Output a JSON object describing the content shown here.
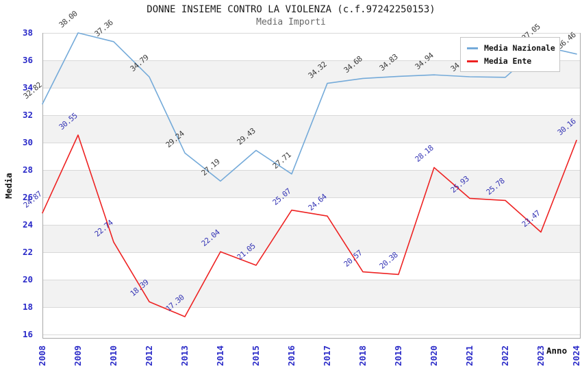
{
  "chart_data": {
    "type": "line",
    "title": "DONNE INSIEME CONTRO LA VIOLENZA (c.f.97242250153)",
    "subtitle": "Media Importi",
    "xlabel": "Anno",
    "ylabel": "Media",
    "categories": [
      "2008",
      "2009",
      "2010",
      "2012",
      "2013",
      "2014",
      "2015",
      "2016",
      "2017",
      "2018",
      "2019",
      "2020",
      "2021",
      "2022",
      "2023",
      "2024"
    ],
    "series": [
      {
        "name": "Media Nazionale",
        "color": "#74aad9",
        "label_color": "#3c3c3c",
        "values": [
          32.82,
          38.0,
          37.36,
          34.79,
          29.24,
          27.19,
          29.43,
          27.71,
          34.32,
          34.68,
          34.83,
          34.94,
          34.8,
          34.76,
          37.05,
          36.46
        ],
        "labels": [
          "32.82",
          "38.00",
          "37.36",
          "34.79",
          "29.24",
          "27.19",
          "29.43",
          "27.71",
          "34.32",
          "34.68",
          "34.83",
          "34.94",
          "34.80",
          "34.76",
          "37.05",
          "36.46"
        ]
      },
      {
        "name": "Media Ente",
        "color": "#ee2222",
        "label_color": "#3535b5",
        "values": [
          24.87,
          30.55,
          22.74,
          18.39,
          17.3,
          22.04,
          21.05,
          25.07,
          24.64,
          20.57,
          20.38,
          28.18,
          25.93,
          25.78,
          23.47,
          30.16
        ],
        "labels": [
          "24.87",
          "30.55",
          "22.74",
          "18.39",
          "17.30",
          "22.04",
          "21.05",
          "25.07",
          "24.64",
          "20.57",
          "20.38",
          "28.18",
          "25.93",
          "25.78",
          "23.47",
          "30.16"
        ]
      }
    ],
    "y_ticks": [
      38,
      36,
      34,
      32,
      30,
      28,
      26,
      24,
      22,
      20,
      18,
      16
    ],
    "ylim": [
      16,
      38
    ],
    "legend_position": "top-right",
    "grid": "horizontal gridlines with alternating gray bands",
    "colors": {
      "tick_label": "#2a2ac8",
      "band_fill": "#f2f2f2",
      "gridline": "#d9d9d9",
      "spine": "#a8a8a8",
      "background": "#ffffff"
    }
  }
}
